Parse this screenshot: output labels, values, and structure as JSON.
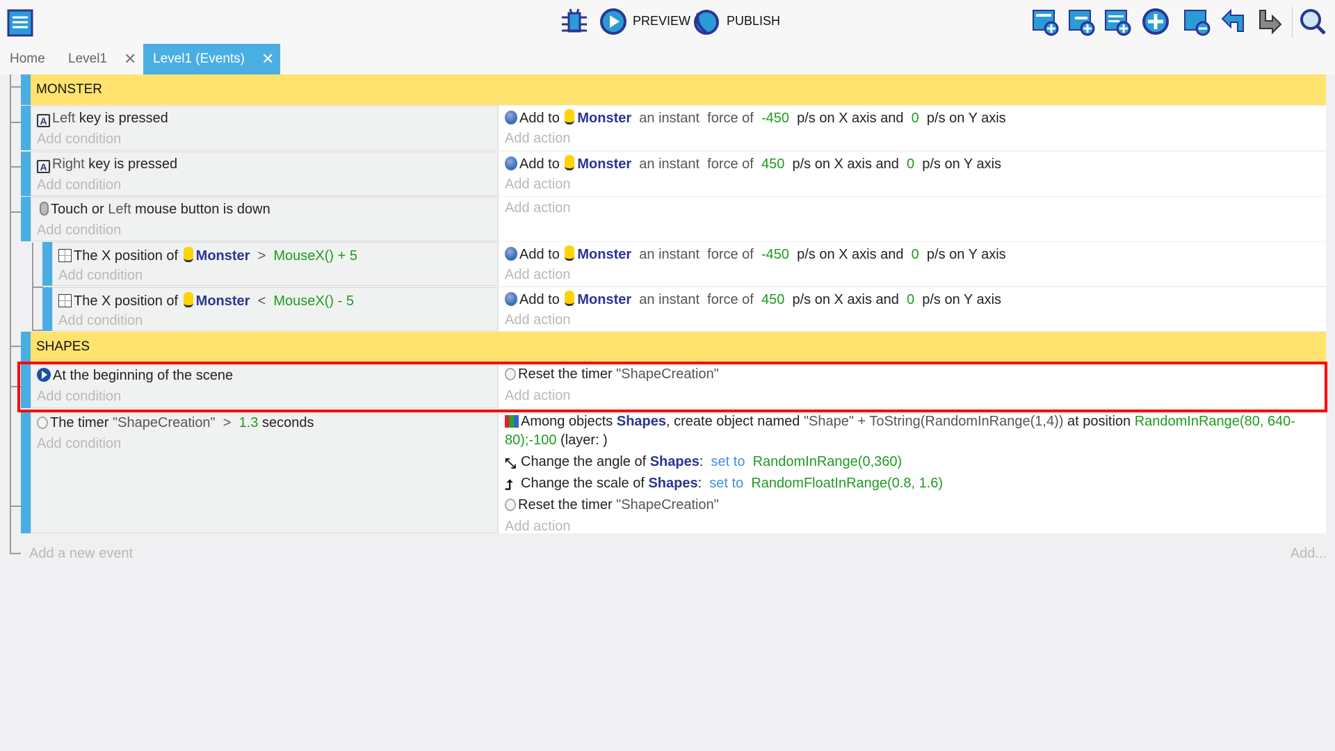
{
  "toolbar": {
    "preview_label": "PREVIEW",
    "publish_label": "PUBLISH",
    "icons": [
      "events-sheet-icon",
      "debugger-icon",
      "preview-play-icon",
      "publish-globe-icon",
      "add-event-icon",
      "add-subevent-icon",
      "add-comment-icon",
      "add-other-icon",
      "delete-event-icon",
      "undo-icon",
      "redo-icon",
      "search-icon"
    ]
  },
  "tabs": [
    {
      "label": "Home",
      "closable": false
    },
    {
      "label": "Level1",
      "close": "✕"
    },
    {
      "label": "Level1 (Events)",
      "close": "✕",
      "active": true
    }
  ],
  "colors": {
    "accent": "#4aaee3",
    "group": "#ffe36e",
    "object": "#2b3593",
    "number": "#1f9a1f",
    "highlight": "#ff0000"
  },
  "groups": [
    {
      "title": "MONSTER"
    },
    {
      "title": "SHAPES"
    }
  ],
  "events": [
    {
      "conditions": [
        [
          {
            "icon": "key"
          },
          {
            "t": "Left",
            "c": "grey"
          },
          {
            "t": " key is pressed"
          }
        ]
      ],
      "actions": [
        [
          {
            "icon": "force"
          },
          {
            "t": "Add to "
          },
          {
            "icon": "monster"
          },
          {
            "t": "Monster",
            "c": "obj"
          },
          {
            "t": "  an instant  force of  ",
            "c": "grey"
          },
          {
            "t": "-450",
            "c": "num"
          },
          {
            "t": "  p/s on X axis and  "
          },
          {
            "t": "0",
            "c": "num"
          },
          {
            "t": "  p/s on Y axis"
          }
        ]
      ]
    },
    {
      "conditions": [
        [
          {
            "icon": "key"
          },
          {
            "t": "Right",
            "c": "grey"
          },
          {
            "t": " key is pressed"
          }
        ]
      ],
      "actions": [
        [
          {
            "icon": "force"
          },
          {
            "t": "Add to "
          },
          {
            "icon": "monster"
          },
          {
            "t": "Monster",
            "c": "obj"
          },
          {
            "t": "  an instant  force of  ",
            "c": "grey"
          },
          {
            "t": "450",
            "c": "num"
          },
          {
            "t": "  p/s on X axis and  "
          },
          {
            "t": "0",
            "c": "num"
          },
          {
            "t": "  p/s on Y axis"
          }
        ]
      ]
    },
    {
      "conditions": [
        [
          {
            "icon": "mouse"
          },
          {
            "t": "Touch or "
          },
          {
            "t": "Left",
            "c": "grey"
          },
          {
            "t": " mouse button is down"
          }
        ]
      ],
      "actions": []
    },
    {
      "sub": true,
      "conditions": [
        [
          {
            "icon": "grid"
          },
          {
            "t": "The X position of "
          },
          {
            "icon": "monster"
          },
          {
            "t": "Monster",
            "c": "obj"
          },
          {
            "t": "  >  ",
            "c": "grey"
          },
          {
            "t": "MouseX() + 5",
            "c": "num"
          }
        ]
      ],
      "actions": [
        [
          {
            "icon": "force"
          },
          {
            "t": "Add to "
          },
          {
            "icon": "monster"
          },
          {
            "t": "Monster",
            "c": "obj"
          },
          {
            "t": "  an instant  force of  ",
            "c": "grey"
          },
          {
            "t": "-450",
            "c": "num"
          },
          {
            "t": "  p/s on X axis and  "
          },
          {
            "t": "0",
            "c": "num"
          },
          {
            "t": "  p/s on Y axis"
          }
        ]
      ]
    },
    {
      "sub": true,
      "conditions": [
        [
          {
            "icon": "grid"
          },
          {
            "t": "The X position of "
          },
          {
            "icon": "monster"
          },
          {
            "t": "Monster",
            "c": "obj"
          },
          {
            "t": "  <  ",
            "c": "grey"
          },
          {
            "t": "MouseX() - 5",
            "c": "num"
          }
        ]
      ],
      "actions": [
        [
          {
            "icon": "force"
          },
          {
            "t": "Add to "
          },
          {
            "icon": "monster"
          },
          {
            "t": "Monster",
            "c": "obj"
          },
          {
            "t": "  an instant  force of  ",
            "c": "grey"
          },
          {
            "t": "450",
            "c": "num"
          },
          {
            "t": "  p/s on X axis and  "
          },
          {
            "t": "0",
            "c": "num"
          },
          {
            "t": "  p/s on Y axis"
          }
        ]
      ]
    },
    {
      "conditions": [
        [
          {
            "icon": "start"
          },
          {
            "t": "At the beginning of the scene"
          }
        ]
      ],
      "actions": [
        [
          {
            "icon": "timer"
          },
          {
            "t": "Reset the timer "
          },
          {
            "t": "\"ShapeCreation\"",
            "c": "grey"
          }
        ]
      ],
      "selected": true
    },
    {
      "conditions": [
        [
          {
            "icon": "timer"
          },
          {
            "t": "The timer "
          },
          {
            "t": "\"ShapeCreation\"",
            "c": "grey"
          },
          {
            "t": "  >  ",
            "c": "grey"
          },
          {
            "t": "1.3",
            "c": "num"
          },
          {
            "t": " seconds"
          }
        ]
      ],
      "actions": [
        [
          {
            "icon": "create"
          },
          {
            "t": "Among objects "
          },
          {
            "t": "Shapes",
            "c": "obj"
          },
          {
            "t": ", create object named "
          },
          {
            "t": "\"Shape\" + ToString(RandomInRange(1,4))",
            "c": "grey"
          },
          {
            "t": " at position "
          },
          {
            "t": "RandomInRange(80, 640-",
            "c": "num"
          }
        ],
        [
          {
            "t": "80);-100",
            "c": "num"
          },
          {
            "t": " (layer: )"
          }
        ],
        [
          {
            "icon": "angle"
          },
          {
            "t": "Change the angle of "
          },
          {
            "t": "Shapes",
            "c": "obj"
          },
          {
            "t": ":  "
          },
          {
            "t": "set to",
            "c": "kw"
          },
          {
            "t": "  "
          },
          {
            "t": "RandomInRange(0,360)",
            "c": "num"
          }
        ],
        [
          {
            "icon": "scale"
          },
          {
            "t": "Change the scale of "
          },
          {
            "t": "Shapes",
            "c": "obj"
          },
          {
            "t": ":  "
          },
          {
            "t": "set to",
            "c": "kw"
          },
          {
            "t": "  "
          },
          {
            "t": "RandomFloatInRange(0.8, 1.6)",
            "c": "num"
          }
        ],
        [
          {
            "icon": "timer"
          },
          {
            "t": "Reset the timer "
          },
          {
            "t": "\"ShapeCreation\"",
            "c": "grey"
          }
        ]
      ]
    }
  ],
  "labels": {
    "add_condition": "Add condition",
    "add_action": "Add action",
    "add_event": "Add a new event",
    "add_more": "Add..."
  }
}
